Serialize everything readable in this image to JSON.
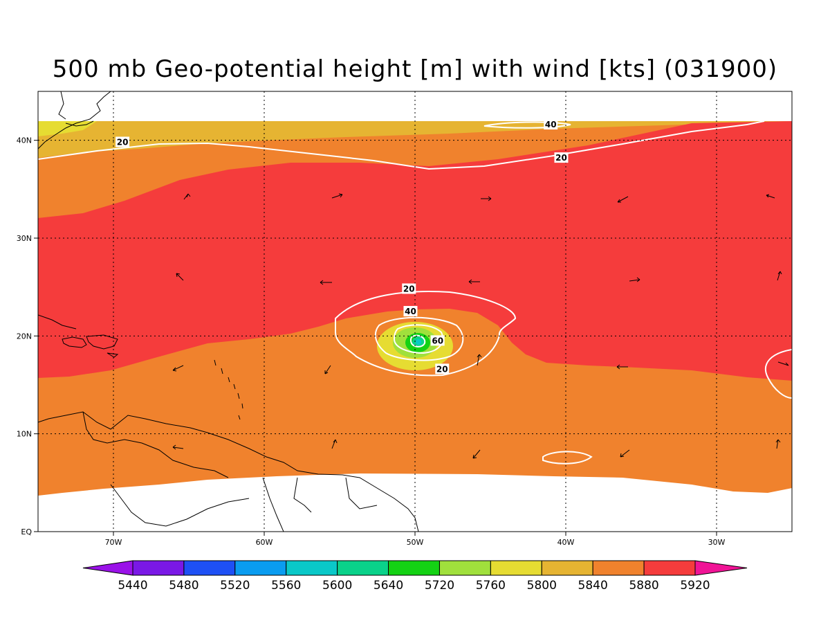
{
  "title": "500 mb Geo-potential height [m] with wind [kts] (031900)",
  "map": {
    "lon_range": [
      -75,
      -25
    ],
    "lat_range": [
      0,
      45
    ],
    "x_ticks": [
      {
        "lon": -70,
        "label": "70W"
      },
      {
        "lon": -60,
        "label": "60W"
      },
      {
        "lon": -50,
        "label": "50W"
      },
      {
        "lon": -40,
        "label": "40W"
      },
      {
        "lon": -30,
        "label": "30W"
      }
    ],
    "y_ticks": [
      {
        "lat": 0,
        "label": "EQ"
      },
      {
        "lat": 10,
        "label": "10N"
      },
      {
        "lat": 20,
        "label": "20N"
      },
      {
        "lat": 30,
        "label": "30N"
      },
      {
        "lat": 40,
        "label": "40N"
      }
    ],
    "contour_labels": [
      {
        "lon": -69.4,
        "lat": 39.8,
        "text": "20"
      },
      {
        "lon": -40.3,
        "lat": 38.2,
        "text": "20"
      },
      {
        "lon": -41.0,
        "lat": 41.6,
        "text": "40"
      },
      {
        "lon": -50.4,
        "lat": 24.8,
        "text": "20"
      },
      {
        "lon": -50.3,
        "lat": 22.5,
        "text": "40"
      },
      {
        "lon": -48.5,
        "lat": 19.5,
        "text": "60"
      },
      {
        "lon": -48.2,
        "lat": 16.6,
        "text": "20"
      }
    ]
  },
  "colorbar": {
    "labels": [
      "5440",
      "5480",
      "5520",
      "5560",
      "5600",
      "5640",
      "5720",
      "5760",
      "5800",
      "5840",
      "5880",
      "5920"
    ],
    "colors": [
      "#9a12e8",
      "#7a18e6",
      "#1e50f5",
      "#0a9cf0",
      "#0ac8c8",
      "#0ad28a",
      "#14d214",
      "#a0e03c",
      "#e6dc32",
      "#e6b432",
      "#f0822d",
      "#f53c3c",
      "#f01496"
    ]
  }
}
